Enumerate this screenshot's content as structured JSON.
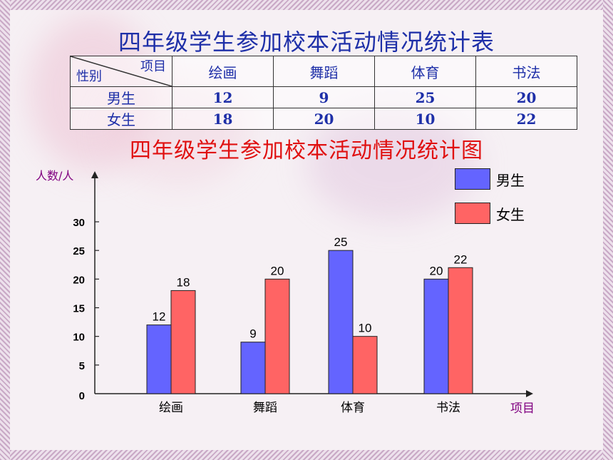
{
  "table": {
    "title": "四年级学生参加校本活动情况统计表",
    "corner_top": "项目",
    "corner_bottom": "性别",
    "columns": [
      "绘画",
      "舞蹈",
      "体育",
      "书法"
    ],
    "rows": [
      {
        "label": "男生",
        "values": [
          "12",
          "9",
          "25",
          "20"
        ]
      },
      {
        "label": "女生",
        "values": [
          "18",
          "20",
          "10",
          "22"
        ]
      }
    ]
  },
  "chart_data": {
    "type": "bar",
    "title": "四年级学生参加校本活动情况统计图",
    "ylabel": "人数/人",
    "xlabel": "项目",
    "categories": [
      "绘画",
      "舞蹈",
      "体育",
      "书法"
    ],
    "series": [
      {
        "name": "男生",
        "values": [
          12,
          9,
          25,
          20
        ],
        "color": "#6464ff"
      },
      {
        "name": "女生",
        "values": [
          18,
          20,
          10,
          22
        ],
        "color": "#ff6464"
      }
    ],
    "ylim": [
      0,
      30
    ],
    "yticks": [
      "0",
      "5",
      "10",
      "15",
      "20",
      "25",
      "30"
    ],
    "legend_position": "top-right",
    "grid": false
  },
  "colors": {
    "title_table": "#1e2fa8",
    "title_chart": "#e01010",
    "axis_label": "#800080"
  }
}
